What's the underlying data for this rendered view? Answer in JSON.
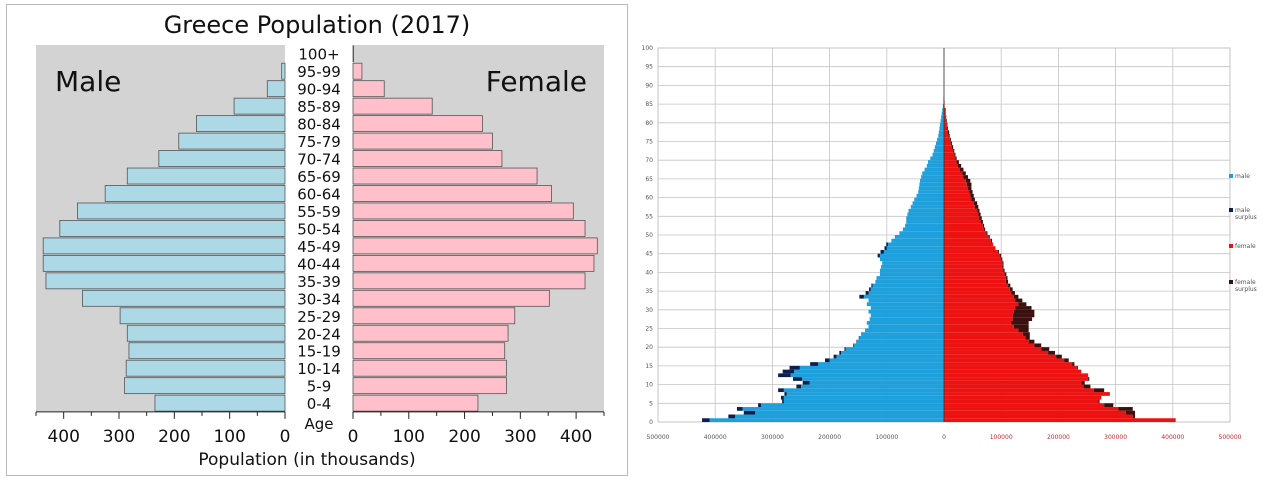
{
  "chart_data": [
    {
      "type": "bar",
      "title": "Greece Population (2017)",
      "subtype": "population-pyramid",
      "xlabel": "Population (in thousands)",
      "ylabel": "Age",
      "left_label": "Male",
      "right_label": "Female",
      "xlim": [
        0,
        450
      ],
      "x_ticks": [
        0,
        100,
        200,
        300,
        400
      ],
      "categories": [
        "0-4",
        "5-9",
        "10-14",
        "15-19",
        "20-24",
        "25-29",
        "30-34",
        "35-39",
        "40-44",
        "45-49",
        "50-54",
        "55-59",
        "60-64",
        "65-69",
        "70-74",
        "75-79",
        "80-84",
        "85-89",
        "90-94",
        "95-99",
        "100+"
      ],
      "series": [
        {
          "name": "Male",
          "values": [
            235,
            290,
            287,
            282,
            285,
            298,
            366,
            432,
            437,
            437,
            407,
            375,
            325,
            285,
            228,
            192,
            160,
            92,
            32,
            6,
            0
          ],
          "color": "#add8e6"
        },
        {
          "name": "Female",
          "values": [
            224,
            275,
            275,
            272,
            278,
            290,
            352,
            416,
            432,
            438,
            416,
            395,
            356,
            330,
            267,
            250,
            232,
            142,
            56,
            16,
            1
          ],
          "color": "#ffc0cb"
        }
      ],
      "background": "#d3d3d3"
    },
    {
      "type": "bar",
      "subtype": "population-pyramid",
      "y_ticks": [
        0,
        5,
        10,
        15,
        20,
        25,
        30,
        35,
        40,
        45,
        50,
        55,
        60,
        65,
        70,
        75,
        80,
        85,
        90,
        95,
        100
      ],
      "x_ticks_left": [
        "500000",
        "400000",
        "300000",
        "200000",
        "100000",
        "0"
      ],
      "x_ticks_right": [
        "100000",
        "200000",
        "300000",
        "400000",
        "500000"
      ],
      "xlim": [
        -500000,
        500000
      ],
      "ylim": [
        0,
        100
      ],
      "legend": [
        "male",
        "male surplus",
        "female",
        "female surplus"
      ],
      "legend_placement": "right",
      "colors": {
        "male": "#1ea0dc",
        "male_surplus": "#0d1f4d",
        "female": "#ee1111",
        "female_surplus": "#3d1010"
      },
      "male": [
        410,
        365,
        330,
        352,
        320,
        280,
        280,
        275,
        280,
        250,
        235,
        248,
        268,
        262,
        252,
        220,
        200,
        188,
        180,
        172,
        158,
        152,
        148,
        145,
        138,
        132,
        135,
        130,
        128,
        132,
        128,
        135,
        132,
        140,
        132,
        128,
        125,
        120,
        118,
        112,
        112,
        110,
        108,
        112,
        112,
        105,
        100,
        98,
        92,
        86,
        78,
        72,
        68,
        66,
        66,
        64,
        62,
        58,
        55,
        52,
        48,
        45,
        44,
        43,
        42,
        40,
        38,
        34,
        30,
        28,
        24,
        20,
        18,
        16,
        14,
        12,
        10,
        9,
        8,
        7,
        6,
        5,
        4,
        3,
        2,
        1,
        1,
        0,
        0,
        0,
        0,
        0,
        0,
        0,
        0,
        0,
        0,
        0,
        0,
        0
      ],
      "male_surplus": [
        13,
        12,
        20,
        10,
        5,
        3,
        5,
        4,
        10,
        8,
        12,
        16,
        22,
        20,
        18,
        14,
        8,
        5,
        3,
        2,
        1,
        1,
        1,
        0,
        0,
        0,
        0,
        0,
        0,
        0,
        0,
        0,
        0,
        8,
        5,
        3,
        2,
        0,
        0,
        0,
        0,
        0,
        0,
        0,
        4,
        6,
        4,
        3,
        0,
        0,
        0,
        0,
        0,
        0,
        0,
        0,
        0,
        0,
        0,
        0,
        0,
        0,
        0,
        0,
        0,
        0,
        0,
        0,
        0,
        0,
        0,
        0,
        0,
        0,
        0,
        0,
        0,
        0,
        0,
        0,
        0,
        0,
        0,
        0,
        0,
        0,
        0,
        0,
        0,
        0,
        0,
        0,
        0,
        0,
        0,
        0,
        0,
        0,
        0,
        0
      ],
      "female": [
        405,
        330,
        318,
        305,
        280,
        270,
        275,
        290,
        262,
        244,
        240,
        252,
        252,
        240,
        232,
        224,
        210,
        196,
        182,
        170,
        158,
        148,
        142,
        138,
        130,
        122,
        118,
        120,
        120,
        122,
        125,
        130,
        125,
        122,
        118,
        115,
        112,
        108,
        108,
        106,
        104,
        102,
        102,
        100,
        98,
        94,
        90,
        86,
        82,
        78,
        74,
        70,
        68,
        64,
        62,
        60,
        58,
        54,
        52,
        48,
        46,
        44,
        42,
        40,
        38,
        34,
        32,
        28,
        24,
        22,
        20,
        18,
        16,
        14,
        12,
        10,
        8,
        7,
        6,
        5,
        4,
        3,
        2,
        2,
        1,
        1,
        0,
        0,
        0,
        0,
        0,
        0,
        0,
        0,
        0,
        0,
        0,
        0,
        0,
        0
      ],
      "female_surplus": [
        0,
        4,
        16,
        25,
        16,
        2,
        0,
        0,
        18,
        12,
        6,
        2,
        0,
        0,
        2,
        4,
        8,
        10,
        12,
        14,
        12,
        10,
        8,
        12,
        18,
        26,
        30,
        34,
        38,
        36,
        28,
        14,
        12,
        8,
        6,
        5,
        4,
        4,
        3,
        3,
        2,
        2,
        2,
        2,
        2,
        2,
        0,
        0,
        2,
        2,
        2,
        2,
        2,
        4,
        4,
        4,
        4,
        6,
        6,
        6,
        6,
        6,
        6,
        8,
        8,
        8,
        6,
        6,
        6,
        4,
        2,
        2,
        2,
        2,
        2,
        2,
        2,
        2,
        1,
        1,
        1,
        1,
        1,
        1,
        0,
        0,
        0,
        0,
        0,
        0,
        0,
        0,
        0,
        0,
        0,
        0,
        0,
        0,
        0,
        0
      ]
    }
  ]
}
